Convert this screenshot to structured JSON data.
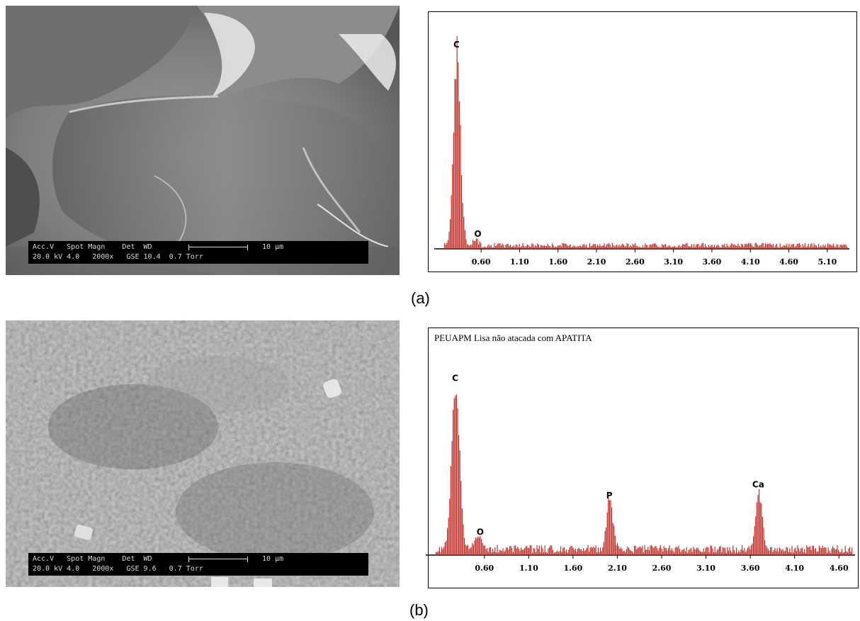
{
  "figure": {
    "panel_a": {
      "label": "(a)",
      "sem": {
        "info_row1": "Acc.V   Spot Magn    Det  WD",
        "info_row2": "20.0 kV 4.0   2000x   GSE 10.4  0.7 Torr",
        "scale_label": "10 µm"
      },
      "spectrum": {
        "title": ""
      }
    },
    "panel_b": {
      "label": "(b)",
      "sem": {
        "info_row1": "Acc.V   Spot Magn    Det  WD",
        "info_row2": "20.0 kV 4.0   2000x   GSE 9.6   0.7 Torr",
        "scale_label": "10 µm"
      },
      "spectrum": {
        "title": "PEUAPM Lisa não atacada com APATITA"
      }
    }
  },
  "chart_data": [
    {
      "type": "bar",
      "title": "",
      "xlabel": "",
      "ylabel": "",
      "x_ticks": [
        "0.60",
        "1.10",
        "1.60",
        "2.10",
        "2.60",
        "3.10",
        "3.60",
        "4.10",
        "4.60",
        "5.10"
      ],
      "xlim": [
        0.12,
        5.35
      ],
      "ylim": [
        0,
        100
      ],
      "bar_color": "#c0302a",
      "peaks": [
        {
          "label": "C",
          "x": 0.28,
          "y": 92
        },
        {
          "label": "O",
          "x": 0.52,
          "y": 3
        }
      ],
      "baseline": 2
    },
    {
      "type": "bar",
      "title": "PEUAPM Lisa não atacada com APATITA",
      "xlabel": "",
      "ylabel": "",
      "x_ticks": [
        "0.60",
        "1.10",
        "1.60",
        "2.10",
        "2.60",
        "3.10",
        "3.60",
        "4.10",
        "4.60"
      ],
      "xlim": [
        0.05,
        4.75
      ],
      "ylim": [
        0,
        100
      ],
      "bar_color": "#c0302a",
      "peaks": [
        {
          "label": "C",
          "x": 0.27,
          "y": 92
        },
        {
          "label": "O",
          "x": 0.52,
          "y": 8
        },
        {
          "label": "P",
          "x": 2.01,
          "y": 28
        },
        {
          "label": "Ca",
          "x": 3.69,
          "y": 34
        }
      ],
      "baseline": 4
    }
  ]
}
